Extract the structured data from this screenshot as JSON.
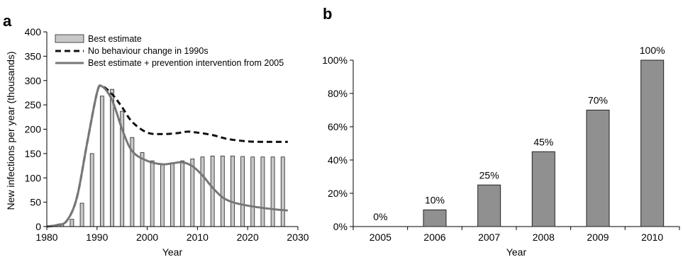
{
  "chart_data": [
    {
      "panel": "a",
      "type": "bar",
      "xlabel": "Year",
      "ylabel": "New infections per year (thousands)",
      "xlim": [
        1980,
        2030
      ],
      "ylim": [
        0,
        400
      ],
      "xticks": [
        1980,
        1990,
        2000,
        2010,
        2020,
        2030
      ],
      "yticks": [
        0,
        50,
        100,
        150,
        200,
        250,
        300,
        350,
        400
      ],
      "legend_position": "top-left",
      "bar_series": {
        "name": "Best estimate",
        "color": "#c8c8c8",
        "x": [
          1981,
          1983,
          1985,
          1987,
          1989,
          1991,
          1993,
          1995,
          1997,
          1999,
          2001,
          2003,
          2005,
          2007,
          2009,
          2011,
          2013,
          2015,
          2017,
          2019,
          2021,
          2023,
          2025,
          2027
        ],
        "values": [
          2,
          6,
          15,
          48,
          150,
          268,
          282,
          237,
          183,
          152,
          135,
          129,
          129,
          135,
          139,
          143,
          145,
          145,
          145,
          144,
          143,
          143,
          143,
          143
        ]
      },
      "line_series": [
        {
          "name": "No behaviour change in 1990s",
          "style": "dashed",
          "color": "#111111",
          "x": [
            1980,
            1982,
            1984,
            1986,
            1988,
            1990,
            1991,
            1993,
            1995,
            1997,
            2000,
            2003,
            2006,
            2008,
            2010,
            2013,
            2016,
            2020,
            2024,
            2028
          ],
          "values": [
            0,
            3,
            12,
            60,
            170,
            275,
            288,
            272,
            245,
            215,
            193,
            190,
            192,
            195,
            193,
            188,
            180,
            175,
            174,
            174
          ]
        },
        {
          "name": "Best estimate + prevention intervention from 2005",
          "style": "solid",
          "color": "#777777",
          "x": [
            1980,
            1982,
            1984,
            1986,
            1988,
            1990,
            1991,
            1993,
            1995,
            1997,
            2000,
            2003,
            2005,
            2007,
            2009,
            2011,
            2013,
            2015,
            2017,
            2020,
            2024,
            2028
          ],
          "values": [
            0,
            3,
            12,
            60,
            170,
            275,
            288,
            260,
            200,
            155,
            135,
            128,
            130,
            132,
            124,
            105,
            80,
            60,
            50,
            43,
            37,
            33
          ]
        }
      ]
    },
    {
      "panel": "b",
      "type": "bar",
      "xlabel": "Year",
      "ylabel": "",
      "categories": [
        "2005",
        "2006",
        "2007",
        "2008",
        "2009",
        "2010"
      ],
      "values": [
        0,
        10,
        25,
        45,
        70,
        100
      ],
      "data_labels": [
        "0%",
        "10%",
        "25%",
        "45%",
        "70%",
        "100%"
      ],
      "ylim": [
        0,
        100
      ],
      "yticks": [
        0,
        20,
        40,
        60,
        80,
        100
      ],
      "ytick_labels": [
        "0%",
        "20%",
        "40%",
        "60%",
        "80%",
        "100%"
      ],
      "bar_color": "#909090"
    }
  ]
}
